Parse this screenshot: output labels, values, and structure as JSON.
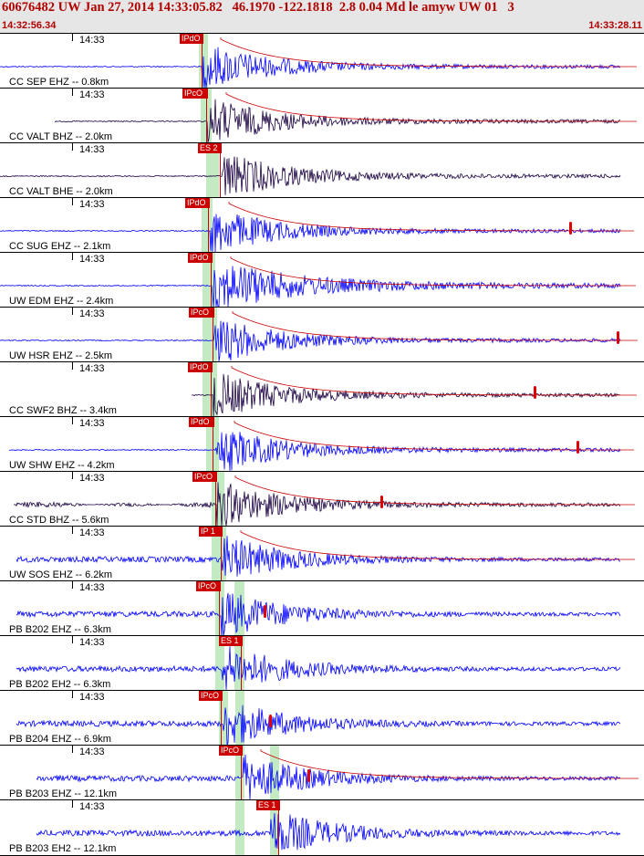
{
  "header": {
    "title": "60676482 UW Jan 27, 2014 14:33:05.82   46.1970 -122.1818  2.8 0.04 Md le amyw UW 01   3",
    "start_time": "14:32:56.34",
    "end_time": "14:33:28.11"
  },
  "time_mark_label": "14:33",
  "colors": {
    "trace": "#0000ff",
    "trace_dark": "#1a0040",
    "pick": "#cc0000",
    "window": "#b8e6b8",
    "header_bg": "#e6e6e6"
  },
  "traces": [
    {
      "label": "CC SEP EHZ -- 0.8km",
      "pick": "IPdO",
      "color": "blue"
    },
    {
      "label": "CC VALT BHZ -- 2.0km",
      "pick": "IPcO",
      "color": "dark"
    },
    {
      "label": "CC VALT BHE -- 2.0km",
      "pick": "ES 2",
      "color": "dark"
    },
    {
      "label": "CC SUG EHZ -- 2.1km",
      "pick": "IPdO",
      "color": "blue"
    },
    {
      "label": "UW EDM EHZ -- 2.4km",
      "pick": "IPdO",
      "color": "blue"
    },
    {
      "label": "UW HSR EHZ -- 2.5km",
      "pick": "IPcO",
      "color": "blue"
    },
    {
      "label": "CC SWF2 BHZ -- 3.4km",
      "pick": "IPdO",
      "color": "dark"
    },
    {
      "label": "UW SHW EHZ -- 4.2km",
      "pick": "IPdO",
      "color": "blue"
    },
    {
      "label": "CC STD BHZ -- 5.6km",
      "pick": "IPcO",
      "color": "dark"
    },
    {
      "label": "UW SOS EHZ -- 6.2km",
      "pick": "IP 1",
      "color": "blue"
    },
    {
      "label": "PB B202 EHZ -- 6.3km",
      "pick": "IPcO",
      "color": "blue"
    },
    {
      "label": "PB B202 EH2 -- 6.3km",
      "pick": "ES 1",
      "color": "blue"
    },
    {
      "label": "PB B204 EHZ -- 6.9km",
      "pick": "IPcO",
      "color": "blue"
    },
    {
      "label": "PB B203 EHZ -- 12.1km",
      "pick": "IPcO",
      "color": "blue"
    },
    {
      "label": "PB B203 EH2 -- 12.1km",
      "pick": "ES 1",
      "color": "blue"
    }
  ]
}
